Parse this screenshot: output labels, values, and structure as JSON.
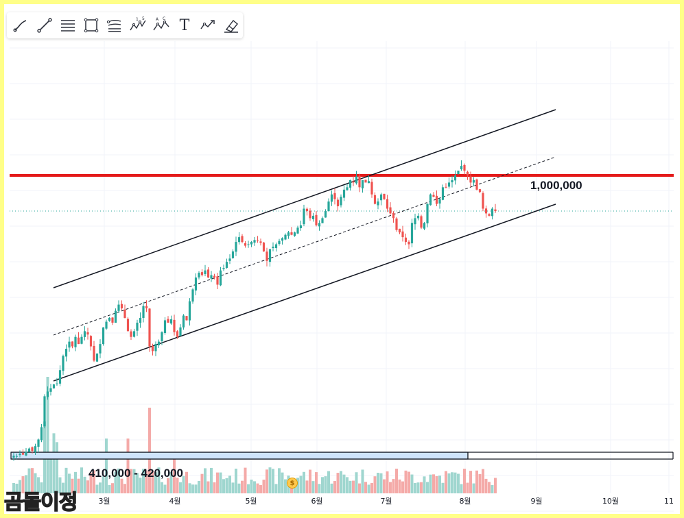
{
  "toolbar": {
    "tools": [
      {
        "name": "brush-tool",
        "icon": "brush-icon"
      },
      {
        "name": "trend-line-tool",
        "icon": "trend-line-icon"
      },
      {
        "name": "fib-retracement-tool",
        "icon": "fib-retracement-icon"
      },
      {
        "name": "rectangle-tool",
        "icon": "rectangle-icon"
      },
      {
        "name": "pitchfork-tool",
        "icon": "pitchfork-icon"
      },
      {
        "name": "elliott-wave-tool",
        "icon": "elliott-wave-icon",
        "label": "1 5"
      },
      {
        "name": "abcd-pattern-tool",
        "icon": "abcd-pattern-icon",
        "label": "A C"
      },
      {
        "name": "text-tool",
        "icon": "text-icon",
        "label": "T"
      },
      {
        "name": "forecast-tool",
        "icon": "forecast-icon"
      },
      {
        "name": "eraser-tool",
        "icon": "eraser-icon"
      }
    ]
  },
  "watermark": "곰돌이정",
  "colors": {
    "frame": "#ffff88",
    "up": "#26a69a",
    "down": "#ef5350",
    "resistance": "#e41a1a",
    "channel": "#131722",
    "range_fill": "#cfe4fb"
  },
  "chart_data": {
    "type": "candlestick",
    "title": "",
    "x_ticks": [
      "3월",
      "4월",
      "5월",
      "6월",
      "7월",
      "8월",
      "9월",
      "10월",
      "11"
    ],
    "annotations": {
      "resistance_label": "1,000,000",
      "range_label": "410,000 - 420,000"
    },
    "y_range": [
      400000,
      1200000
    ],
    "resistance_level": 1000000,
    "current_price_level": 925000,
    "range_zone": [
      410000,
      420000
    ],
    "channel": {
      "upper": [
        {
          "t": 0.0,
          "p": 740000
        },
        {
          "t": 1.0,
          "p": 1110000
        }
      ],
      "lower": [
        {
          "t": 0.0,
          "p": 520000
        },
        {
          "t": 1.0,
          "p": 950000
        }
      ],
      "mid": [
        {
          "t": 0.0,
          "p": 615000
        },
        {
          "t": 1.0,
          "p": 1030000
        }
      ]
    },
    "candles": {
      "close": [
        410,
        409,
        414,
        412,
        418,
        425,
        420,
        430,
        444,
        470,
        535,
        545,
        552,
        560,
        562,
        590,
        620,
        635,
        650,
        640,
        660,
        645,
        660,
        672,
        665,
        640,
        610,
        625,
        645,
        680,
        692,
        700,
        690,
        715,
        728,
        720,
        700,
        672,
        660,
        672,
        690,
        700,
        725,
        720,
        640,
        630,
        645,
        650,
        670,
        695,
        690,
        697,
        670,
        660,
        680,
        705,
        695,
        735,
        760,
        785,
        795,
        790,
        800,
        785,
        790,
        785,
        770,
        800,
        805,
        818,
        825,
        840,
        860,
        870,
        860,
        852,
        855,
        860,
        864,
        864,
        858,
        840,
        820,
        845,
        850,
        855,
        862,
        868,
        875,
        880,
        875,
        880,
        890,
        895,
        930,
        925,
        910,
        915,
        895,
        900,
        910,
        925,
        945,
        960,
        950,
        935,
        955,
        970,
        975,
        990,
        985,
        998,
        975,
        990,
        985,
        988,
        960,
        940,
        945,
        960,
        950,
        930,
        920,
        910,
        885,
        880,
        870,
        860,
        855,
        900,
        910,
        915,
        890,
        900,
        940,
        960,
        955,
        940,
        950,
        975,
        975,
        985,
        990,
        1000,
        1010,
        1020,
        1010,
        1000,
        985,
        990,
        970,
        965,
        930,
        920,
        915,
        930,
        925
      ]
    },
    "volume_shown": true
  }
}
